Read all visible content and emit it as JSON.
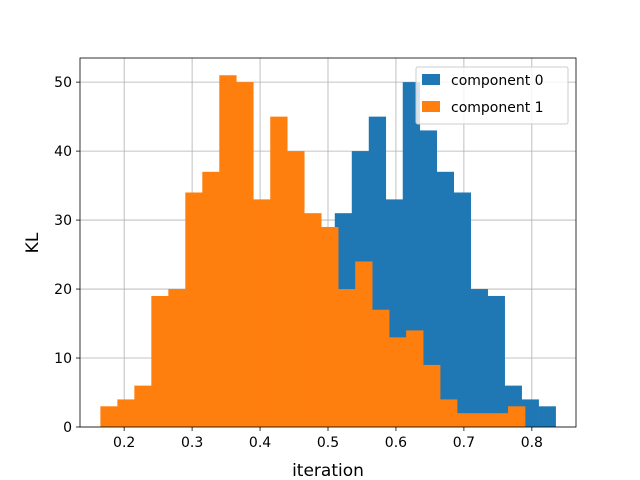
{
  "chart_data": {
    "type": "bar",
    "title": "",
    "xlabel": "iteration",
    "ylabel": "KL",
    "xlim": [
      0.135,
      0.865
    ],
    "ylim": [
      0,
      53.5
    ],
    "xticks": [
      0.2,
      0.3,
      0.4,
      0.5,
      0.6,
      0.7,
      0.8
    ],
    "xtick_labels": [
      "0.2",
      "0.3",
      "0.4",
      "0.5",
      "0.6",
      "0.7",
      "0.8"
    ],
    "yticks": [
      0,
      10,
      20,
      30,
      40,
      50
    ],
    "ytick_labels": [
      "0",
      "10",
      "20",
      "30",
      "40",
      "50"
    ],
    "grid": true,
    "legend_position": "top-right",
    "colors": {
      "series0": "#1f77b4",
      "series1": "#ff7f0e",
      "grid": "#b0b0b0",
      "axis": "#000000"
    },
    "series": [
      {
        "name": "component 0",
        "bins": [
          [
            0.51,
            0.535,
            31
          ],
          [
            0.535,
            0.56,
            40
          ],
          [
            0.56,
            0.585,
            45
          ],
          [
            0.585,
            0.61,
            33
          ],
          [
            0.61,
            0.635,
            50
          ],
          [
            0.635,
            0.66,
            43
          ],
          [
            0.66,
            0.685,
            37
          ],
          [
            0.685,
            0.71,
            34
          ],
          [
            0.71,
            0.735,
            20
          ],
          [
            0.735,
            0.76,
            19
          ],
          [
            0.76,
            0.785,
            6
          ],
          [
            0.785,
            0.81,
            4
          ],
          [
            0.81,
            0.835,
            3
          ]
        ]
      },
      {
        "name": "component 1",
        "bins": [
          [
            0.165,
            0.19,
            3
          ],
          [
            0.19,
            0.215,
            4
          ],
          [
            0.215,
            0.24,
            6
          ],
          [
            0.24,
            0.265,
            19
          ],
          [
            0.265,
            0.29,
            20
          ],
          [
            0.29,
            0.315,
            34
          ],
          [
            0.315,
            0.34,
            37
          ],
          [
            0.34,
            0.365,
            51
          ],
          [
            0.365,
            0.39,
            50
          ],
          [
            0.39,
            0.415,
            33
          ],
          [
            0.415,
            0.44,
            45
          ],
          [
            0.44,
            0.465,
            40
          ],
          [
            0.465,
            0.49,
            31
          ],
          [
            0.49,
            0.515,
            29
          ],
          [
            0.515,
            0.54,
            20
          ],
          [
            0.54,
            0.565,
            24
          ],
          [
            0.565,
            0.59,
            17
          ],
          [
            0.59,
            0.615,
            13
          ],
          [
            0.615,
            0.64,
            14
          ],
          [
            0.64,
            0.665,
            9
          ],
          [
            0.665,
            0.69,
            4
          ],
          [
            0.69,
            0.715,
            2
          ],
          [
            0.715,
            0.74,
            2
          ],
          [
            0.74,
            0.765,
            2
          ],
          [
            0.765,
            0.79,
            3
          ]
        ]
      }
    ]
  }
}
